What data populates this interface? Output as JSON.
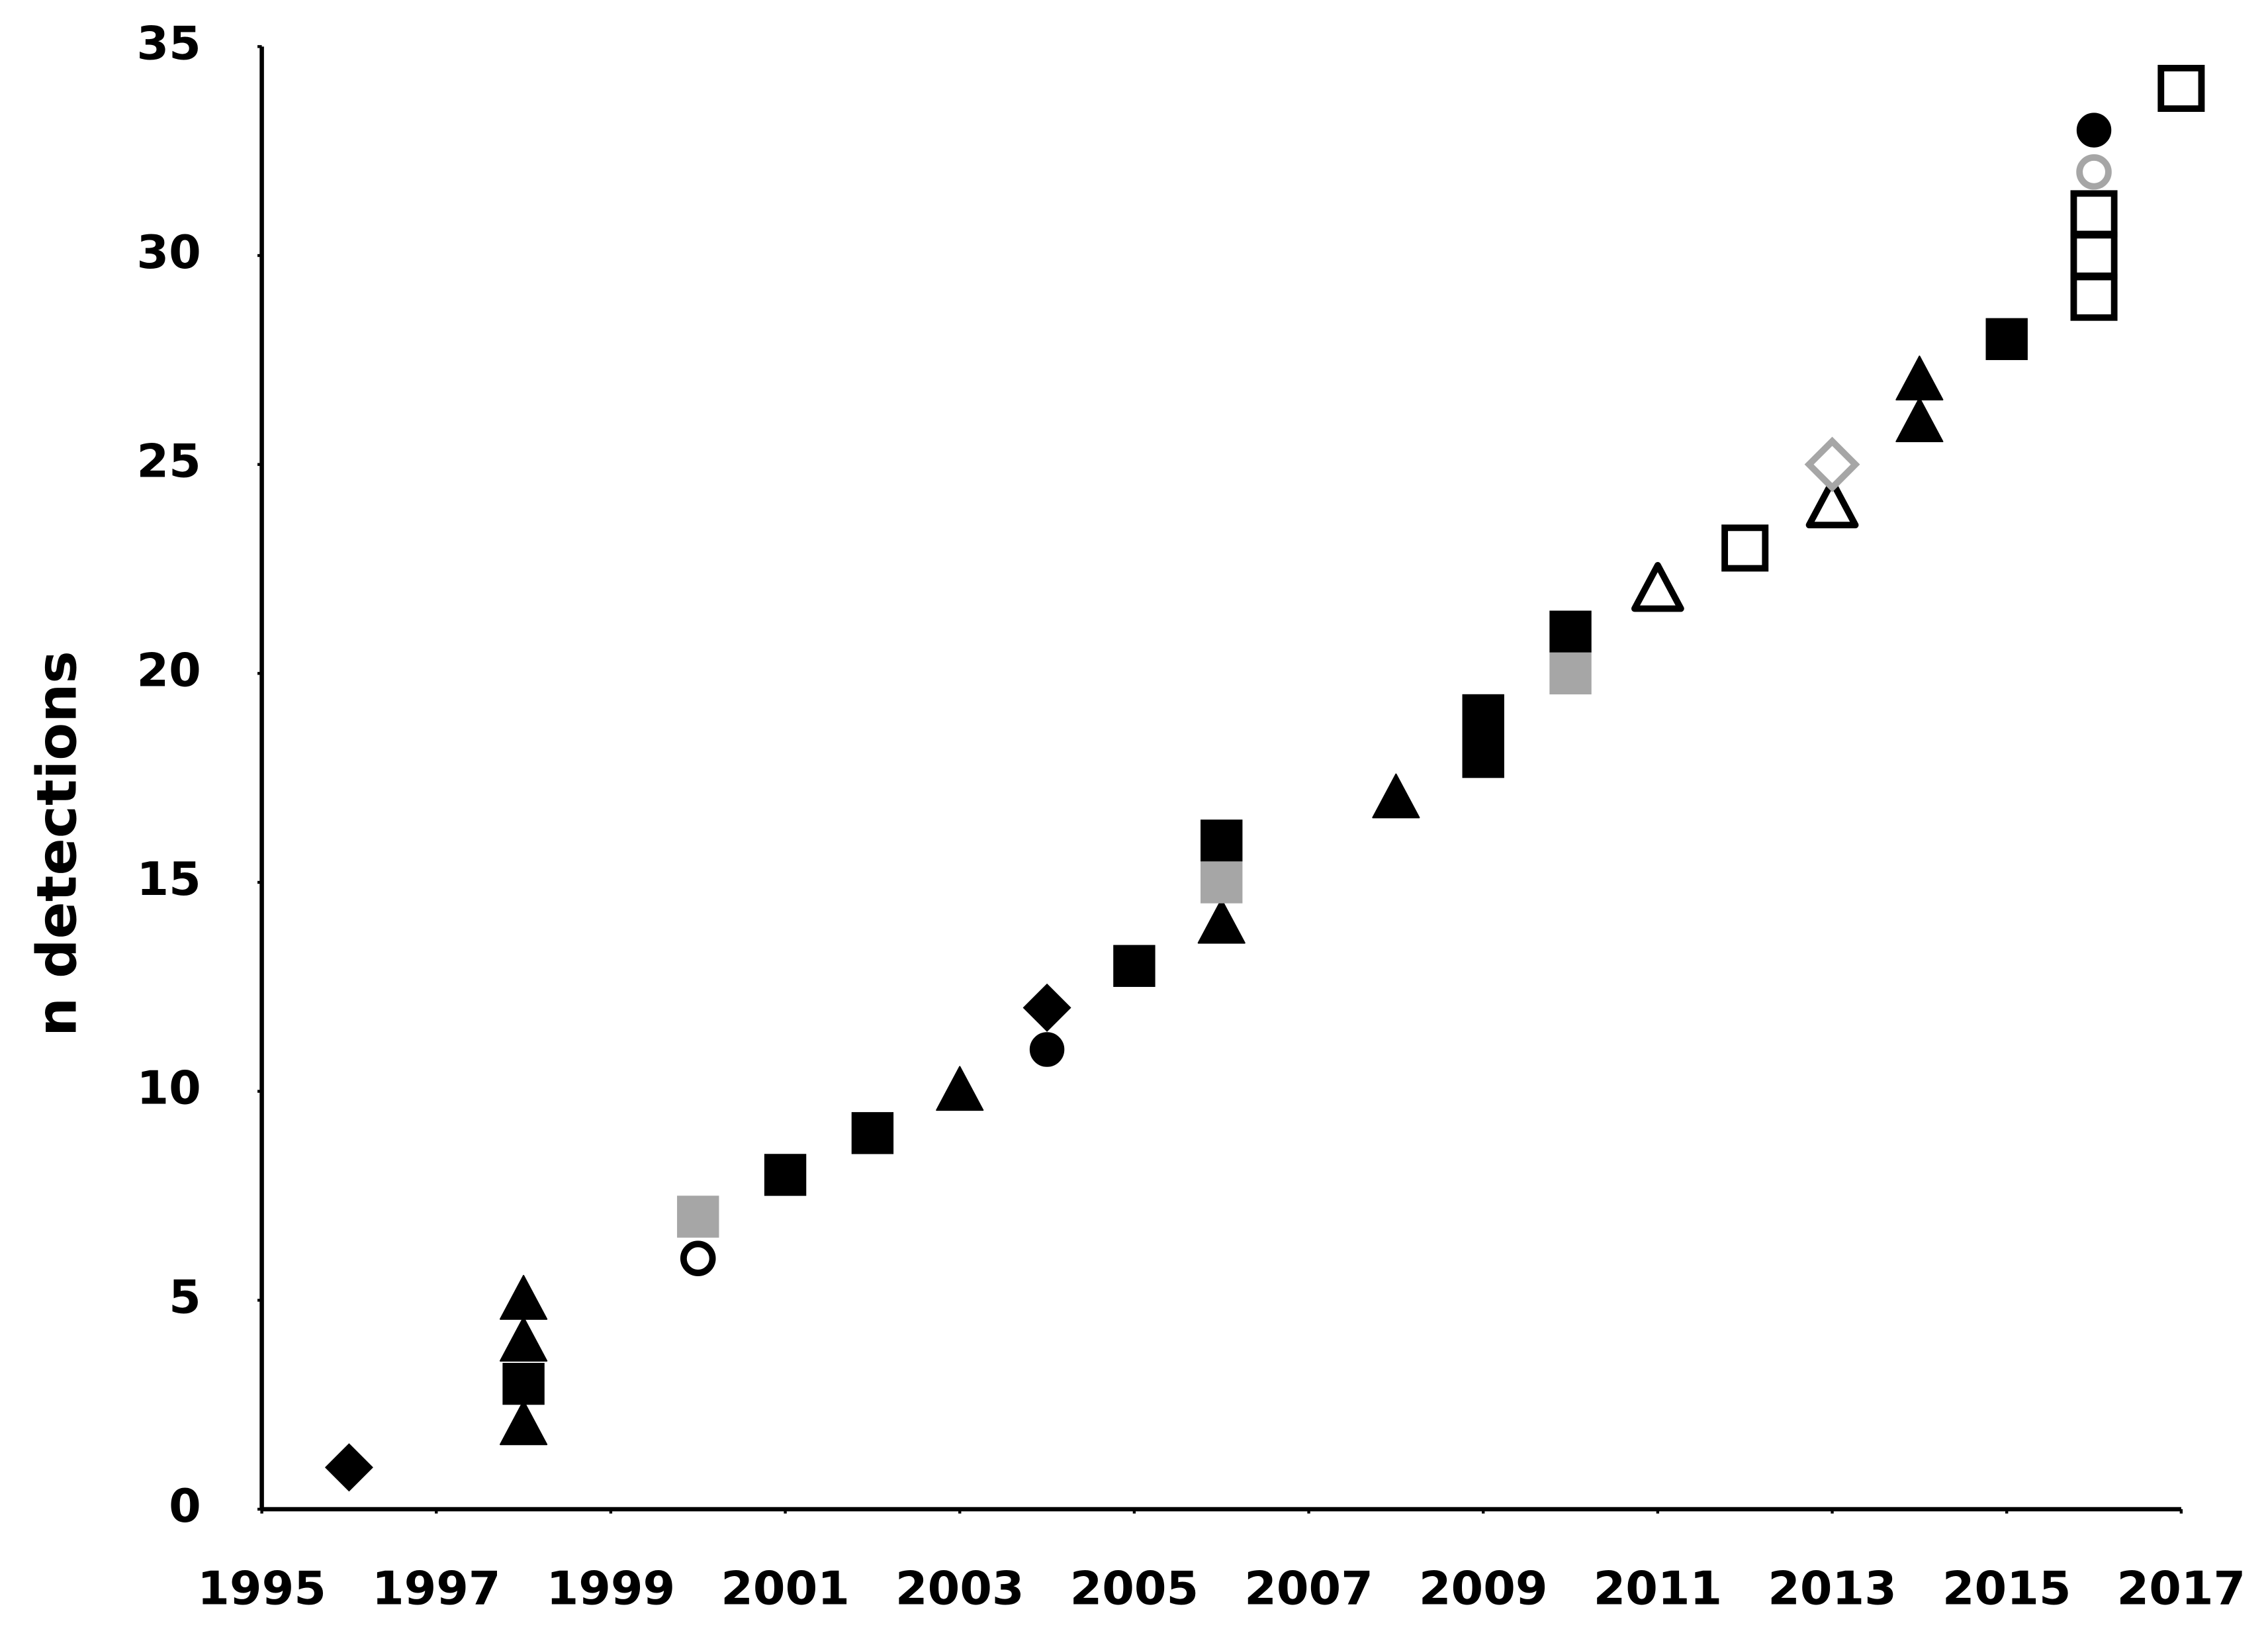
{
  "chart_data": {
    "type": "scatter",
    "y_label": "n detections",
    "xlim": [
      1995,
      2017
    ],
    "xticks": [
      1995,
      1997,
      1999,
      2001,
      2003,
      2005,
      2007,
      2009,
      2011,
      2013,
      2015,
      2017
    ],
    "ylim": [
      0,
      35
    ],
    "yticks": [
      0,
      5,
      10,
      15,
      20,
      25,
      30,
      35
    ],
    "grid": false,
    "series": [
      {
        "marker": "diamond",
        "filled": true,
        "color": "#000000",
        "x": [
          1996,
          2004
        ],
        "values": [
          1,
          12
        ]
      },
      {
        "marker": "triangle",
        "filled": true,
        "color": "#000000",
        "x": [
          1998,
          1998,
          1998,
          2003,
          2006,
          2008,
          2014,
          2014
        ],
        "values": [
          2,
          4,
          5,
          10,
          14,
          17,
          26,
          27
        ]
      },
      {
        "marker": "square",
        "filled": true,
        "color": "#000000",
        "x": [
          1998,
          2001,
          2002,
          2005,
          2006,
          2009,
          2009,
          2010,
          2015
        ],
        "values": [
          3,
          8,
          9,
          13,
          16,
          18,
          19,
          21,
          28
        ]
      },
      {
        "marker": "square",
        "filled": true,
        "color": "#a6a6a6",
        "x": [
          2000,
          2006,
          2010
        ],
        "values": [
          7,
          15,
          20
        ]
      },
      {
        "marker": "circle",
        "filled": false,
        "color": "#000000",
        "x": [
          2000
        ],
        "values": [
          6
        ]
      },
      {
        "marker": "circle",
        "filled": true,
        "color": "#000000",
        "x": [
          2004,
          2016
        ],
        "values": [
          11,
          33
        ]
      },
      {
        "marker": "triangle",
        "filled": false,
        "color": "#000000",
        "x": [
          2011,
          2013
        ],
        "values": [
          22,
          24
        ]
      },
      {
        "marker": "square",
        "filled": false,
        "color": "#000000",
        "x": [
          2012,
          2016,
          2016,
          2016,
          2017
        ],
        "values": [
          23,
          29,
          30,
          31,
          34
        ]
      },
      {
        "marker": "diamond",
        "filled": false,
        "color": "#a6a6a6",
        "x": [
          2013
        ],
        "values": [
          25
        ]
      },
      {
        "marker": "circle",
        "filled": false,
        "color": "#a6a6a6",
        "x": [
          2016
        ],
        "values": [
          32
        ]
      }
    ]
  }
}
